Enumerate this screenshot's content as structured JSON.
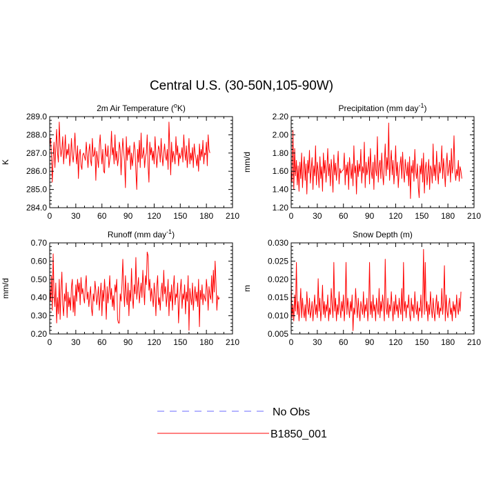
{
  "title": "Central U.S. (30-50N,105-90W)",
  "colors": {
    "model": "#ff0000",
    "obs": "#6a6aff",
    "axis": "#000000",
    "background": "#ffffff"
  },
  "legend": {
    "position": "bottom-center",
    "entries": [
      "No Obs",
      "B1850_001"
    ]
  },
  "chart_data": [
    {
      "type": "line",
      "title": "2m Air Temperature (",
      "title_super": "o",
      "title_tail": "K)",
      "xlabel": "",
      "ylabel": "K",
      "xlim": [
        0,
        210
      ],
      "ylim": [
        284.0,
        289.0
      ],
      "xticks": [
        "0",
        "30",
        "60",
        "90",
        "120",
        "150",
        "180",
        "210"
      ],
      "yticks": [
        "284.0",
        "285.0",
        "286.0",
        "287.0",
        "288.0",
        "289.0"
      ],
      "x_start": 0,
      "x_step": 1,
      "series": [
        {
          "name": "B1850_001",
          "color": "#ff0000",
          "values": [
            287.4,
            287.8,
            286.9,
            285.4,
            286.8,
            287.6,
            286.2,
            287.3,
            288.3,
            287.0,
            286.5,
            288.7,
            287.4,
            286.8,
            287.2,
            287.9,
            286.4,
            287.1,
            288.0,
            286.7,
            287.2,
            286.9,
            287.5,
            286.3,
            286.8,
            287.8,
            286.9,
            286.5,
            287.2,
            288.1,
            287.0,
            286.4,
            287.4,
            285.6,
            286.9,
            287.2,
            286.3,
            286.1,
            286.9,
            287.0,
            286.8,
            286.6,
            287.6,
            286.9,
            286.2,
            287.1,
            287.5,
            286.6,
            286.3,
            287.8,
            286.8,
            286.9,
            287.3,
            285.5,
            287.1,
            286.7,
            286.2,
            287.4,
            288.0,
            287.0,
            286.4,
            287.2,
            286.0,
            285.9,
            287.5,
            286.9,
            286.8,
            287.4,
            286.2,
            286.6,
            287.0,
            288.2,
            286.9,
            287.3,
            286.4,
            288.0,
            286.6,
            287.1,
            286.3,
            286.7,
            287.6,
            287.2,
            285.8,
            286.9,
            287.8,
            287.1,
            286.5,
            285.1,
            287.9,
            286.6,
            287.3,
            286.9,
            287.4,
            286.1,
            287.0,
            286.3,
            286.8,
            287.6,
            287.2,
            286.0,
            285.0,
            287.2,
            286.5,
            287.7,
            286.2,
            288.1,
            286.7,
            286.9,
            287.3,
            286.2,
            286.8,
            287.0,
            288.0,
            286.3,
            285.4,
            287.6,
            286.9,
            287.3,
            286.6,
            287.1,
            286.4,
            287.9,
            287.0,
            286.2,
            286.8,
            287.4,
            287.2,
            286.5,
            287.8,
            286.9,
            286.3,
            287.0,
            287.5,
            286.8,
            286.6,
            287.2,
            286.1,
            288.7,
            287.3,
            285.8,
            287.6,
            286.5,
            287.1,
            286.8,
            286.4,
            287.9,
            286.9,
            287.4,
            286.3,
            287.0,
            286.7,
            286.9,
            287.3,
            286.5,
            288.0,
            287.1,
            286.6,
            287.4,
            286.2,
            286.9,
            287.8,
            286.4,
            287.0,
            286.6,
            287.3,
            286.2,
            287.5,
            287.0,
            286.7,
            286.3,
            286.9,
            286.0,
            287.5,
            286.6,
            287.2,
            286.8,
            287.7,
            286.4,
            287.0,
            286.9,
            287.6,
            286.3,
            288.0,
            287.2,
            287.0
          ]
        }
      ]
    },
    {
      "type": "line",
      "title": "Precipitation (mm day",
      "title_super": "-1",
      "title_tail": ")",
      "xlabel": "",
      "ylabel": "mm/d",
      "xlim": [
        0,
        210
      ],
      "ylim": [
        1.2,
        2.2
      ],
      "xticks": [
        "0",
        "30",
        "60",
        "90",
        "120",
        "150",
        "180",
        "210"
      ],
      "yticks": [
        "1.20",
        "1.40",
        "1.60",
        "1.80",
        "2.00",
        "2.20"
      ],
      "x_start": 0,
      "x_step": 1,
      "series": [
        {
          "name": "B1850_001",
          "color": "#ff0000",
          "values": [
            1.62,
            1.48,
            2.05,
            1.4,
            1.85,
            1.55,
            1.72,
            1.45,
            1.66,
            1.38,
            1.7,
            1.52,
            1.8,
            1.42,
            1.63,
            1.76,
            1.5,
            1.68,
            1.35,
            1.72,
            1.58,
            1.83,
            1.47,
            1.62,
            1.75,
            1.4,
            1.66,
            1.55,
            1.88,
            1.45,
            1.7,
            1.6,
            1.42,
            1.76,
            1.52,
            1.65,
            1.38,
            1.8,
            1.58,
            1.72,
            1.48,
            1.62,
            1.85,
            1.55,
            1.68,
            1.44,
            1.73,
            1.6,
            1.37,
            1.78,
            1.56,
            1.69,
            1.5,
            1.65,
            1.82,
            1.46,
            1.63,
            1.58,
            1.6,
            1.61,
            1.62,
            1.8,
            1.45,
            1.67,
            1.56,
            1.7,
            1.4,
            1.75,
            1.62,
            1.52,
            1.68,
            1.44,
            1.88,
            1.58,
            1.66,
            1.35,
            1.72,
            1.54,
            1.68,
            1.6,
            1.84,
            1.47,
            1.65,
            1.58,
            1.92,
            1.42,
            1.7,
            1.56,
            1.63,
            1.76,
            1.46,
            1.85,
            1.6,
            1.52,
            1.7,
            1.4,
            1.78,
            1.62,
            1.55,
            1.98,
            1.48,
            1.66,
            1.72,
            1.52,
            1.8,
            1.58,
            1.45,
            1.68,
            1.9,
            1.55,
            1.75,
            1.62,
            2.13,
            1.5,
            1.68,
            1.83,
            1.56,
            1.72,
            1.46,
            1.63,
            1.88,
            1.55,
            1.7,
            1.42,
            1.6,
            1.67,
            1.76,
            1.52,
            1.81,
            1.58,
            1.48,
            1.73,
            1.62,
            1.55,
            1.7,
            1.44,
            1.76,
            1.3,
            1.66,
            1.58,
            1.72,
            1.49,
            1.84,
            1.6,
            1.52,
            1.68,
            1.42,
            1.31,
            1.66,
            1.57,
            1.74,
            1.48,
            1.8,
            1.36,
            1.63,
            1.7,
            1.45,
            1.58,
            1.73,
            1.4,
            1.66,
            1.62,
            1.47,
            1.9,
            1.55,
            1.67,
            1.5,
            1.82,
            1.6,
            1.46,
            1.7,
            1.58,
            1.65,
            1.88,
            1.52,
            1.74,
            1.6,
            1.43,
            1.68,
            1.8,
            1.55,
            1.62,
            1.72,
            1.48,
            1.85,
            1.58,
            1.66,
            1.99,
            1.6,
            1.5,
            1.62,
            1.55,
            1.72,
            1.49,
            1.65,
            1.6,
            1.52
          ]
        }
      ]
    },
    {
      "type": "line",
      "title": "Runoff (mm day",
      "title_super": "-1",
      "title_tail": ")",
      "xlabel": "",
      "ylabel": "mm/d",
      "xlim": [
        0,
        210
      ],
      "ylim": [
        0.2,
        0.7
      ],
      "xticks": [
        "0",
        "30",
        "60",
        "90",
        "120",
        "150",
        "180",
        "210"
      ],
      "yticks": [
        "0.20",
        "0.30",
        "0.40",
        "0.50",
        "0.60",
        "0.70"
      ],
      "x_start": 0,
      "x_step": 1,
      "series": [
        {
          "name": "B1850_001",
          "color": "#ff0000",
          "values": [
            0.45,
            0.38,
            0.52,
            0.33,
            0.64,
            0.42,
            0.35,
            0.48,
            0.26,
            0.4,
            0.31,
            0.5,
            0.28,
            0.44,
            0.54,
            0.36,
            0.3,
            0.42,
            0.38,
            0.48,
            0.29,
            0.43,
            0.35,
            0.4,
            0.33,
            0.46,
            0.5,
            0.32,
            0.41,
            0.3,
            0.47,
            0.38,
            0.5,
            0.43,
            0.48,
            0.36,
            0.51,
            0.42,
            0.45,
            0.4,
            0.37,
            0.47,
            0.52,
            0.39,
            0.43,
            0.35,
            0.41,
            0.46,
            0.34,
            0.3,
            0.42,
            0.38,
            0.49,
            0.44,
            0.36,
            0.4,
            0.46,
            0.33,
            0.41,
            0.48,
            0.3,
            0.44,
            0.38,
            0.5,
            0.42,
            0.28,
            0.46,
            0.37,
            0.43,
            0.52,
            0.39,
            0.45,
            0.35,
            0.41,
            0.33,
            0.47,
            0.43,
            0.5,
            0.28,
            0.26,
            0.26,
            0.42,
            0.38,
            0.47,
            0.61,
            0.44,
            0.35,
            0.52,
            0.41,
            0.36,
            0.48,
            0.3,
            0.44,
            0.38,
            0.56,
            0.4,
            0.34,
            0.47,
            0.42,
            0.62,
            0.39,
            0.45,
            0.51,
            0.37,
            0.43,
            0.48,
            0.4,
            0.55,
            0.45,
            0.36,
            0.52,
            0.47,
            0.65,
            0.63,
            0.44,
            0.5,
            0.38,
            0.45,
            0.4,
            0.35,
            0.48,
            0.42,
            0.3,
            0.46,
            0.52,
            0.36,
            0.4,
            0.33,
            0.44,
            0.48,
            0.38,
            0.55,
            0.42,
            0.46,
            0.35,
            0.41,
            0.5,
            0.3,
            0.43,
            0.38,
            0.47,
            0.33,
            0.45,
            0.52,
            0.36,
            0.42,
            0.4,
            0.48,
            0.26,
            0.37,
            0.44,
            0.5,
            0.34,
            0.42,
            0.39,
            0.47,
            0.31,
            0.43,
            0.38,
            0.52,
            0.22,
            0.45,
            0.4,
            0.36,
            0.48,
            0.33,
            0.41,
            0.46,
            0.38,
            0.43,
            0.35,
            0.5,
            0.24,
            0.44,
            0.39,
            0.47,
            0.36,
            0.42,
            0.4,
            0.38,
            0.5,
            0.44,
            0.33,
            0.46,
            0.41,
            0.39,
            0.52,
            0.37,
            0.55,
            0.43,
            0.6,
            0.48,
            0.33,
            0.41,
            0.39,
            0.4
          ]
        }
      ]
    },
    {
      "type": "line",
      "title": "Snow Depth (m)",
      "title_super": "",
      "title_tail": "",
      "xlabel": "",
      "ylabel": "m",
      "xlim": [
        0,
        210
      ],
      "ylim": [
        0.004,
        0.032
      ],
      "xticks": [
        "0",
        "30",
        "60",
        "90",
        "120",
        "150",
        "180",
        "210"
      ],
      "yticks": [
        "0.005",
        "0.010",
        "0.015",
        "0.020",
        "0.025",
        "0.030"
      ],
      "x_start": 0,
      "x_step": 1,
      "series": [
        {
          "name": "B1850_001",
          "color": "#ff0000",
          "values": [
            0.02,
            0.009,
            0.013,
            0.008,
            0.016,
            0.011,
            0.026,
            0.01,
            0.014,
            0.008,
            0.012,
            0.018,
            0.009,
            0.015,
            0.011,
            0.009,
            0.013,
            0.008,
            0.017,
            0.012,
            0.01,
            0.015,
            0.009,
            0.011,
            0.014,
            0.008,
            0.012,
            0.016,
            0.01,
            0.013,
            0.009,
            0.021,
            0.011,
            0.015,
            0.008,
            0.012,
            0.019,
            0.01,
            0.014,
            0.009,
            0.013,
            0.011,
            0.016,
            0.008,
            0.012,
            0.01,
            0.018,
            0.013,
            0.009,
            0.026,
            0.011,
            0.015,
            0.008,
            0.013,
            0.01,
            0.017,
            0.012,
            0.009,
            0.014,
            0.011,
            0.016,
            0.008,
            0.013,
            0.026,
            0.01,
            0.015,
            0.012,
            0.009,
            0.014,
            0.011,
            0.016,
            0.005,
            0.012,
            0.01,
            0.018,
            0.013,
            0.009,
            0.015,
            0.011,
            0.008,
            0.014,
            0.012,
            0.01,
            0.017,
            0.009,
            0.013,
            0.011,
            0.015,
            0.008,
            0.012,
            0.026,
            0.01,
            0.014,
            0.009,
            0.016,
            0.011,
            0.013,
            0.008,
            0.015,
            0.012,
            0.01,
            0.018,
            0.009,
            0.014,
            0.011,
            0.016,
            0.013,
            0.008,
            0.027,
            0.012,
            0.01,
            0.015,
            0.009,
            0.013,
            0.011,
            0.017,
            0.012,
            0.008,
            0.014,
            0.01,
            0.016,
            0.011,
            0.013,
            0.009,
            0.015,
            0.012,
            0.01,
            0.018,
            0.008,
            0.026,
            0.011,
            0.014,
            0.009,
            0.013,
            0.012,
            0.016,
            0.01,
            0.008,
            0.015,
            0.011,
            0.013,
            0.009,
            0.017,
            0.012,
            0.01,
            0.014,
            0.008,
            0.012,
            0.011,
            0.016,
            0.009,
            0.013,
            0.03,
            0.01,
            0.026,
            0.011,
            0.014,
            0.008,
            0.013,
            0.01,
            0.017,
            0.012,
            0.009,
            0.015,
            0.011,
            0.008,
            0.013,
            0.016,
            0.01,
            0.014,
            0.009,
            0.012,
            0.011,
            0.018,
            0.01,
            0.014,
            0.025,
            0.008,
            0.016,
            0.011,
            0.009,
            0.013,
            0.015,
            0.01,
            0.012,
            0.008,
            0.014,
            0.011,
            0.013,
            0.009,
            0.016,
            0.012,
            0.01,
            0.015,
            0.011,
            0.017
          ]
        }
      ]
    }
  ]
}
